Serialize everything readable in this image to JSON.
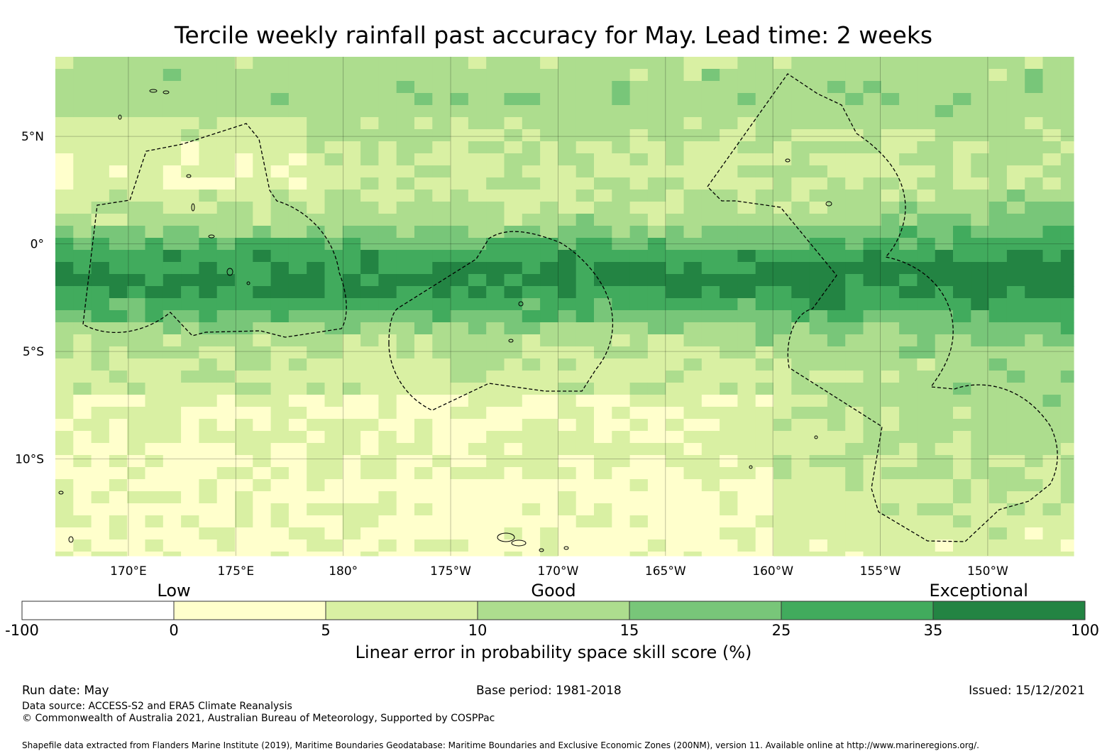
{
  "title": "Tercile weekly rainfall past accuracy for May. Lead time: 2 weeks",
  "map": {
    "lon_range": [
      166.6,
      -146.0
    ],
    "lat_range": [
      -14.5,
      8.7
    ],
    "lat_ticks": [
      {
        "lat": 5,
        "label": "5°N"
      },
      {
        "lat": 0,
        "label": "0°"
      },
      {
        "lat": -5,
        "label": "5°S"
      },
      {
        "lat": -10,
        "label": "10°S"
      }
    ],
    "lon_ticks": [
      {
        "lon": 170,
        "label": "170°E"
      },
      {
        "lon": 175,
        "label": "175°E"
      },
      {
        "lon": 180,
        "label": "180°"
      },
      {
        "lon": -175,
        "label": "175°W"
      },
      {
        "lon": -170,
        "label": "170°W"
      },
      {
        "lon": -165,
        "label": "165°W"
      },
      {
        "lon": -160,
        "label": "160°W"
      },
      {
        "lon": -155,
        "label": "155°W"
      },
      {
        "lon": -150,
        "label": "150°W"
      }
    ]
  },
  "colorbar": {
    "categories": [
      {
        "label": "Low",
        "at": 1
      },
      {
        "label": "Good",
        "at": 3.5
      },
      {
        "label": "Exceptional",
        "at": 6.3
      }
    ],
    "bins": [
      {
        "from": -100,
        "to": 0,
        "color": "#ffffff"
      },
      {
        "from": 0,
        "to": 5,
        "color": "#ffffcc"
      },
      {
        "from": 5,
        "to": 10,
        "color": "#d9f0a3"
      },
      {
        "from": 10,
        "to": 15,
        "color": "#addd8e"
      },
      {
        "from": 15,
        "to": 25,
        "color": "#78c679"
      },
      {
        "from": 25,
        "to": 35,
        "color": "#41ab5d"
      },
      {
        "from": 35,
        "to": 100,
        "color": "#238443"
      }
    ],
    "tick_labels": [
      "-100",
      "0",
      "5",
      "10",
      "15",
      "25",
      "35",
      "100"
    ],
    "label": "Linear error in probability space skill score (%)"
  },
  "footer": {
    "run_date": "Run date: May",
    "base_period": "Base period: 1981-2018",
    "issued": "Issued: 15/12/2021",
    "data_source": "Data source: ACCESS-S2 and ERA5 Climate Reanalysis",
    "copyright": "© Commonwealth of Australia 2021, Australian Bureau of Meteorology, Supported by COSPPac",
    "shapefile": "Shapefile data extracted from Flanders Marine Institute (2019), Maritime Boundaries Geodatabase: Maritime Boundaries and Exclusive Economic Zones (200NM), version 11. Available online at http://www.marineregions.org/."
  }
}
